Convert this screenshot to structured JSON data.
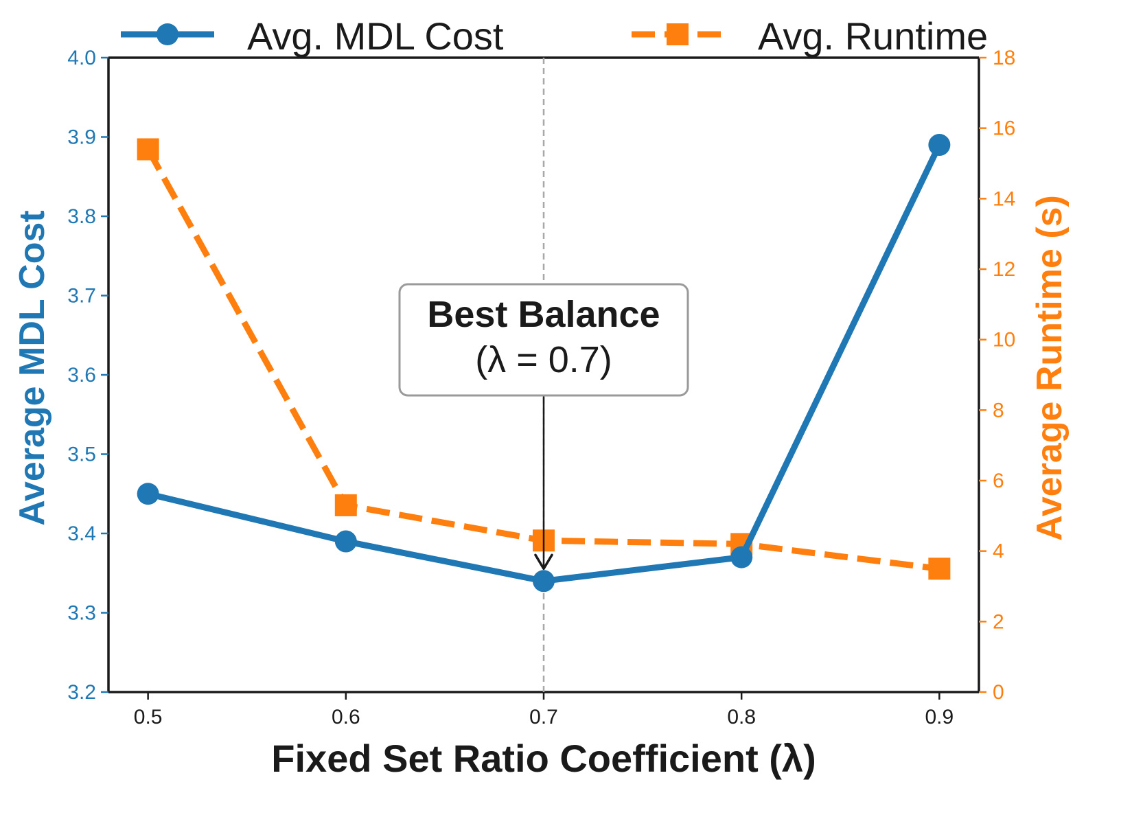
{
  "chart_data": {
    "type": "line",
    "x": [
      0.5,
      0.6,
      0.7,
      0.8,
      0.9
    ],
    "x_tick_labels": [
      "0.5",
      "0.6",
      "0.7",
      "0.8",
      "0.9"
    ],
    "xlabel": "Fixed Set Ratio Coefficient (λ)",
    "xlim": [
      0.48,
      0.92
    ],
    "ylabel_left": "Average MDL Cost",
    "ylim_left": [
      3.2,
      4.0
    ],
    "y_ticks_left": [
      "3.2",
      "3.3",
      "3.4",
      "3.5",
      "3.6",
      "3.7",
      "3.8",
      "3.9",
      "4.0"
    ],
    "ylabel_right": "Average Runtime (s)",
    "ylim_right": [
      0,
      18
    ],
    "y_ticks_right": [
      "0",
      "2",
      "4",
      "6",
      "8",
      "10",
      "12",
      "14",
      "16",
      "18"
    ],
    "series": [
      {
        "name": "Avg. MDL Cost",
        "axis": "left",
        "color": "#1f77b4",
        "marker": "circle",
        "linestyle": "solid",
        "values": [
          3.45,
          3.39,
          3.34,
          3.37,
          3.89
        ]
      },
      {
        "name": "Avg. Runtime",
        "axis": "right",
        "color": "#ff7f0e",
        "marker": "square",
        "linestyle": "dashed",
        "values": [
          15.4,
          5.3,
          4.3,
          4.2,
          3.5
        ]
      }
    ],
    "annotation": {
      "title": "Best Balance",
      "subtitle": "(λ = 0.7)",
      "x": 0.7,
      "target_series": "Avg. MDL Cost"
    },
    "vertical_reference_x": 0.7,
    "legend_position": "top",
    "grid": false
  }
}
